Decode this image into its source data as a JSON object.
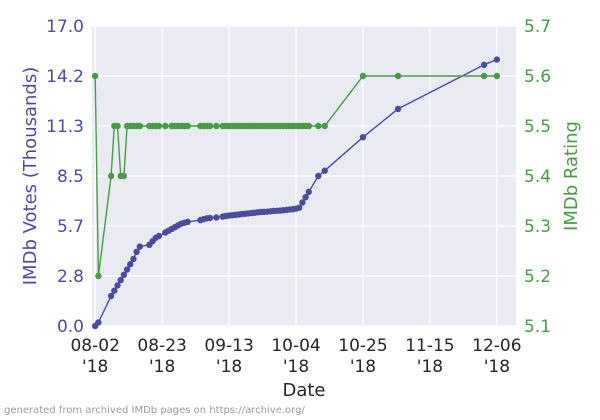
{
  "chart_data": {
    "type": "line",
    "x_type": "date",
    "title": "",
    "xlabel": "Date",
    "ylabel_left": "IMDb Votes (Thousands)",
    "ylabel_right": "IMDb Rating",
    "xlim": [
      "2018-08-01",
      "2018-12-12"
    ],
    "ylim_left": [
      0.0,
      17.0
    ],
    "ylim_right": [
      5.1,
      5.7
    ],
    "x_ticks": [
      {
        "date": "2018-08-02",
        "line1": "08-02",
        "line2": "'18"
      },
      {
        "date": "2018-08-23",
        "line1": "08-23",
        "line2": "'18"
      },
      {
        "date": "2018-09-13",
        "line1": "09-13",
        "line2": "'18"
      },
      {
        "date": "2018-10-04",
        "line1": "10-04",
        "line2": "'18"
      },
      {
        "date": "2018-10-25",
        "line1": "10-25",
        "line2": "'18"
      },
      {
        "date": "2018-11-15",
        "line1": "11-15",
        "line2": "'18"
      },
      {
        "date": "2018-12-06",
        "line1": "12-06",
        "line2": "'18"
      }
    ],
    "y_ticks_left": [
      "0.0",
      "2.8",
      "5.7",
      "8.5",
      "11.3",
      "14.2",
      "17.0"
    ],
    "y_ticks_right": [
      "5.1",
      "5.2",
      "5.3",
      "5.4",
      "5.5",
      "5.6",
      "5.7"
    ],
    "grid": true,
    "colors": {
      "votes": "#4c4c9c",
      "rating": "#4a9a4a",
      "background": "#eaeaf2",
      "grid": "#ffffff",
      "tick_text": "#262626"
    },
    "series": [
      {
        "axis": "left",
        "data": [
          [
            "2018-08-02",
            0.0
          ],
          [
            "2018-08-03",
            0.2
          ],
          [
            "2018-08-07",
            1.7
          ],
          [
            "2018-08-08",
            2.0
          ],
          [
            "2018-08-09",
            2.3
          ],
          [
            "2018-08-10",
            2.6
          ],
          [
            "2018-08-11",
            2.9
          ],
          [
            "2018-08-12",
            3.2
          ],
          [
            "2018-08-13",
            3.5
          ],
          [
            "2018-08-14",
            3.8
          ],
          [
            "2018-08-15",
            4.2
          ],
          [
            "2018-08-16",
            4.5
          ],
          [
            "2018-08-19",
            4.6
          ],
          [
            "2018-08-20",
            4.8
          ],
          [
            "2018-08-21",
            5.0
          ],
          [
            "2018-08-22",
            5.1
          ],
          [
            "2018-08-24",
            5.3
          ],
          [
            "2018-08-25",
            5.4
          ],
          [
            "2018-08-26",
            5.5
          ],
          [
            "2018-08-27",
            5.6
          ],
          [
            "2018-08-28",
            5.7
          ],
          [
            "2018-08-29",
            5.8
          ],
          [
            "2018-08-30",
            5.85
          ],
          [
            "2018-08-31",
            5.9
          ],
          [
            "2018-09-04",
            6.0
          ],
          [
            "2018-09-05",
            6.05
          ],
          [
            "2018-09-06",
            6.1
          ],
          [
            "2018-09-07",
            6.12
          ],
          [
            "2018-09-09",
            6.15
          ],
          [
            "2018-09-11",
            6.2
          ],
          [
            "2018-09-12",
            6.23
          ],
          [
            "2018-09-13",
            6.26
          ],
          [
            "2018-09-14",
            6.28
          ],
          [
            "2018-09-15",
            6.3
          ],
          [
            "2018-09-16",
            6.32
          ],
          [
            "2018-09-17",
            6.34
          ],
          [
            "2018-09-18",
            6.36
          ],
          [
            "2018-09-19",
            6.38
          ],
          [
            "2018-09-20",
            6.4
          ],
          [
            "2018-09-21",
            6.42
          ],
          [
            "2018-09-22",
            6.44
          ],
          [
            "2018-09-23",
            6.46
          ],
          [
            "2018-09-24",
            6.47
          ],
          [
            "2018-09-25",
            6.48
          ],
          [
            "2018-09-26",
            6.5
          ],
          [
            "2018-09-27",
            6.52
          ],
          [
            "2018-09-28",
            6.53
          ],
          [
            "2018-09-29",
            6.54
          ],
          [
            "2018-09-30",
            6.56
          ],
          [
            "2018-10-01",
            6.58
          ],
          [
            "2018-10-02",
            6.6
          ],
          [
            "2018-10-03",
            6.62
          ],
          [
            "2018-10-04",
            6.65
          ],
          [
            "2018-10-05",
            6.7
          ],
          [
            "2018-10-06",
            7.0
          ],
          [
            "2018-10-07",
            7.3
          ],
          [
            "2018-10-08",
            7.6
          ],
          [
            "2018-10-11",
            8.5
          ],
          [
            "2018-10-13",
            8.8
          ],
          [
            "2018-10-25",
            10.7
          ],
          [
            "2018-11-05",
            12.3
          ],
          [
            "2018-12-02",
            14.8
          ],
          [
            "2018-12-06",
            15.1
          ]
        ]
      },
      {
        "axis": "right",
        "data": [
          [
            "2018-08-02",
            5.6
          ],
          [
            "2018-08-03",
            5.2
          ],
          [
            "2018-08-07",
            5.4
          ],
          [
            "2018-08-08",
            5.5
          ],
          [
            "2018-08-09",
            5.5
          ],
          [
            "2018-08-10",
            5.4
          ],
          [
            "2018-08-11",
            5.4
          ],
          [
            "2018-08-12",
            5.5
          ],
          [
            "2018-08-13",
            5.5
          ],
          [
            "2018-08-14",
            5.5
          ],
          [
            "2018-08-15",
            5.5
          ],
          [
            "2018-08-16",
            5.5
          ],
          [
            "2018-08-19",
            5.5
          ],
          [
            "2018-08-20",
            5.5
          ],
          [
            "2018-08-21",
            5.5
          ],
          [
            "2018-08-22",
            5.5
          ],
          [
            "2018-08-24",
            5.5
          ],
          [
            "2018-08-26",
            5.5
          ],
          [
            "2018-08-27",
            5.5
          ],
          [
            "2018-08-28",
            5.5
          ],
          [
            "2018-08-29",
            5.5
          ],
          [
            "2018-08-30",
            5.5
          ],
          [
            "2018-08-31",
            5.5
          ],
          [
            "2018-09-04",
            5.5
          ],
          [
            "2018-09-05",
            5.5
          ],
          [
            "2018-09-06",
            5.5
          ],
          [
            "2018-09-07",
            5.5
          ],
          [
            "2018-09-09",
            5.5
          ],
          [
            "2018-09-11",
            5.5
          ],
          [
            "2018-09-12",
            5.5
          ],
          [
            "2018-09-13",
            5.5
          ],
          [
            "2018-09-14",
            5.5
          ],
          [
            "2018-09-15",
            5.5
          ],
          [
            "2018-09-16",
            5.5
          ],
          [
            "2018-09-17",
            5.5
          ],
          [
            "2018-09-18",
            5.5
          ],
          [
            "2018-09-19",
            5.5
          ],
          [
            "2018-09-20",
            5.5
          ],
          [
            "2018-09-21",
            5.5
          ],
          [
            "2018-09-22",
            5.5
          ],
          [
            "2018-09-23",
            5.5
          ],
          [
            "2018-09-24",
            5.5
          ],
          [
            "2018-09-25",
            5.5
          ],
          [
            "2018-09-26",
            5.5
          ],
          [
            "2018-09-27",
            5.5
          ],
          [
            "2018-09-28",
            5.5
          ],
          [
            "2018-09-29",
            5.5
          ],
          [
            "2018-09-30",
            5.5
          ],
          [
            "2018-10-01",
            5.5
          ],
          [
            "2018-10-02",
            5.5
          ],
          [
            "2018-10-03",
            5.5
          ],
          [
            "2018-10-04",
            5.5
          ],
          [
            "2018-10-05",
            5.5
          ],
          [
            "2018-10-06",
            5.5
          ],
          [
            "2018-10-07",
            5.5
          ],
          [
            "2018-10-08",
            5.5
          ],
          [
            "2018-10-11",
            5.5
          ],
          [
            "2018-10-13",
            5.5
          ],
          [
            "2018-10-25",
            5.6
          ],
          [
            "2018-11-05",
            5.6
          ],
          [
            "2018-12-02",
            5.6
          ],
          [
            "2018-12-06",
            5.6
          ]
        ]
      }
    ]
  },
  "footer": "generated from archived IMDb pages on https://archive.org/"
}
